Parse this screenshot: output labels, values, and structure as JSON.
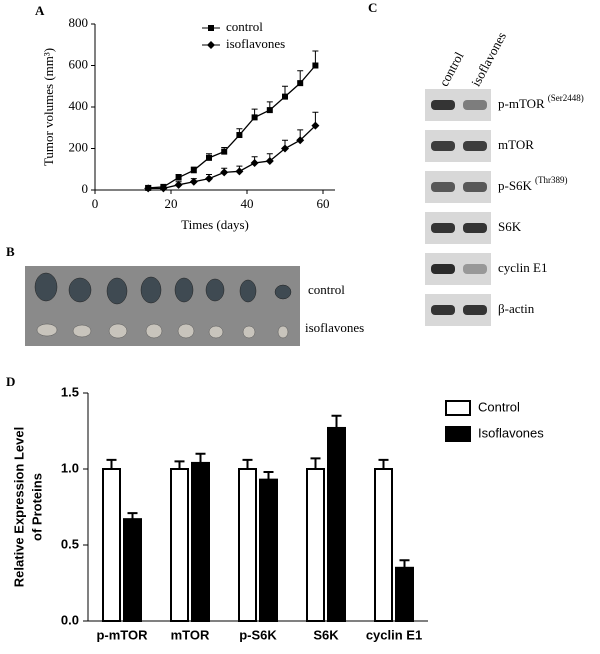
{
  "panels": {
    "a": "A",
    "b": "B",
    "c": "C",
    "d": "D"
  },
  "chart_data": [
    {
      "type": "line",
      "xlabel": "Times (days)",
      "ylabel": "Tumor volumes (mm³)",
      "x": [
        14,
        18,
        22,
        26,
        30,
        34,
        38,
        42,
        46,
        50,
        54,
        58
      ],
      "xlim": [
        0,
        60
      ],
      "xticks": [
        0,
        20,
        40,
        60
      ],
      "ylim": [
        0,
        800
      ],
      "yticks": [
        0,
        200,
        400,
        600,
        800
      ],
      "series": [
        {
          "name": "control",
          "color": "#000000",
          "marker": "square",
          "values": [
            10,
            15,
            60,
            95,
            155,
            185,
            265,
            350,
            385,
            450,
            515,
            600
          ],
          "errors": [
            10,
            10,
            15,
            15,
            20,
            20,
            30,
            40,
            40,
            50,
            60,
            70
          ]
        },
        {
          "name": "isoflavones",
          "color": "#000000",
          "marker": "diamond",
          "values": [
            8,
            8,
            25,
            40,
            55,
            85,
            90,
            130,
            140,
            200,
            240,
            310
          ],
          "errors": [
            10,
            10,
            15,
            15,
            20,
            20,
            25,
            30,
            35,
            40,
            50,
            65
          ]
        }
      ]
    },
    {
      "type": "bar",
      "ylabel": [
        "Relative Expression Level",
        "of Proteins"
      ],
      "categories": [
        "p-mTOR",
        "mTOR",
        "p-S6K",
        "S6K",
        "cyclin E1"
      ],
      "ylim": [
        0,
        1.5
      ],
      "yticks": [
        {
          "value": 0,
          "label": "0.0"
        },
        0.5,
        {
          "value": 1,
          "label": "1.0"
        },
        1.5
      ],
      "legend": "upper right",
      "series": [
        {
          "name": "Control",
          "color": "#ffffff",
          "values": [
            1.0,
            1.0,
            1.0,
            1.0,
            1.0
          ],
          "errors": [
            0.06,
            0.05,
            0.06,
            0.07,
            0.06
          ]
        },
        {
          "name": "Isoflavones",
          "color": "#000000",
          "values": [
            0.67,
            1.04,
            0.93,
            1.27,
            0.35
          ],
          "errors": [
            0.04,
            0.06,
            0.05,
            0.08,
            0.05
          ]
        }
      ]
    }
  ],
  "photo": {
    "rows": [
      "control",
      "isoflavones"
    ]
  },
  "blot": {
    "columns": [
      "control",
      "isoflavones"
    ],
    "rows": [
      {
        "text": "p-mTOR",
        "sup": "(Ser2448)"
      },
      {
        "text": "mTOR"
      },
      {
        "text": "p-S6K",
        "sup": "(Thr389)"
      },
      {
        "text": "S6K"
      },
      {
        "text": "cyclin E1"
      },
      {
        "text": "β-actin"
      }
    ]
  }
}
